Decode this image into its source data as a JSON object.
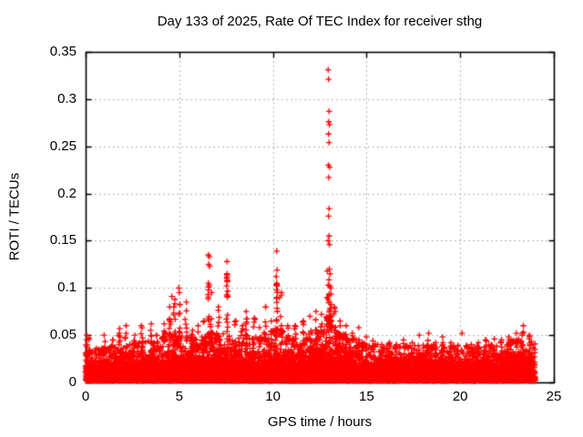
{
  "window": {
    "background": "#ffffff"
  },
  "chart_data": {
    "type": "scatter",
    "title": "Day 133 of 2025, Rate Of TEC Index for receiver sthg",
    "xlabel": "GPS time / hours",
    "ylabel": "ROTI / TECUs",
    "xlim": [
      0,
      25
    ],
    "ylim": [
      0,
      0.35
    ],
    "xticks": [
      0,
      5,
      10,
      15,
      20,
      25
    ],
    "yticks": [
      0,
      0.05,
      0.1,
      0.15,
      0.2,
      0.25,
      0.3,
      0.35
    ],
    "grid": {
      "on": true,
      "color": "#b0b0b0",
      "dash": [
        2,
        3
      ]
    },
    "axis_color": "#000000",
    "legend": "none",
    "marker": {
      "shape": "plus",
      "color": "#ff0000",
      "size": 6.5
    },
    "x_data_range": [
      0,
      24
    ],
    "seed": 20250513,
    "baseline": {
      "description": "dense noise cloud of ROTI values present for all 24 hours",
      "points_per_hour": 500,
      "tail_fraction": 0.06,
      "envelope": [
        [
          0,
          0.022
        ],
        [
          1,
          0.024
        ],
        [
          2,
          0.026
        ],
        [
          3,
          0.028
        ],
        [
          4,
          0.031
        ],
        [
          4.5,
          0.033
        ],
        [
          5,
          0.035
        ],
        [
          5.5,
          0.032
        ],
        [
          6,
          0.03
        ],
        [
          6.5,
          0.034
        ],
        [
          7,
          0.034
        ],
        [
          7.5,
          0.036
        ],
        [
          8,
          0.032
        ],
        [
          8.5,
          0.033
        ],
        [
          9,
          0.031
        ],
        [
          9.5,
          0.034
        ],
        [
          10,
          0.038
        ],
        [
          10.5,
          0.036
        ],
        [
          11,
          0.03
        ],
        [
          11.5,
          0.031
        ],
        [
          12,
          0.034
        ],
        [
          12.5,
          0.038
        ],
        [
          13,
          0.042
        ],
        [
          13.5,
          0.036
        ],
        [
          14,
          0.031
        ],
        [
          15,
          0.027
        ],
        [
          16,
          0.025
        ],
        [
          17,
          0.025
        ],
        [
          18,
          0.026
        ],
        [
          19,
          0.026
        ],
        [
          20,
          0.025
        ],
        [
          21,
          0.025
        ],
        [
          22,
          0.027
        ],
        [
          23,
          0.03
        ],
        [
          24,
          0.028
        ]
      ]
    },
    "spike_columns": [
      [
        0.05,
        6,
        0.03,
        0.05
      ],
      [
        0.2,
        4,
        0.028,
        0.047
      ],
      [
        1.0,
        6,
        0.028,
        0.05
      ],
      [
        1.45,
        5,
        0.028,
        0.045
      ],
      [
        1.8,
        8,
        0.03,
        0.057
      ],
      [
        2.15,
        7,
        0.03,
        0.06
      ],
      [
        2.6,
        6,
        0.028,
        0.05
      ],
      [
        3.0,
        8,
        0.03,
        0.06
      ],
      [
        3.5,
        6,
        0.03,
        0.062
      ],
      [
        3.8,
        5,
        0.028,
        0.05
      ],
      [
        4.2,
        10,
        0.035,
        0.062
      ],
      [
        4.5,
        12,
        0.035,
        0.08
      ],
      [
        4.75,
        10,
        0.038,
        0.088
      ],
      [
        5.0,
        12,
        0.04,
        0.1
      ],
      [
        5.35,
        8,
        0.035,
        0.085
      ],
      [
        5.7,
        5,
        0.03,
        0.055
      ],
      [
        6.0,
        6,
        0.03,
        0.06
      ],
      [
        6.3,
        6,
        0.032,
        0.065
      ],
      [
        6.55,
        9,
        0.04,
        0.098
      ],
      [
        6.7,
        8,
        0.04,
        0.095
      ],
      [
        7.1,
        8,
        0.035,
        0.08
      ],
      [
        7.55,
        14,
        0.04,
        0.115
      ],
      [
        8.0,
        8,
        0.03,
        0.065
      ],
      [
        8.35,
        6,
        0.03,
        0.06
      ],
      [
        8.6,
        8,
        0.033,
        0.075
      ],
      [
        9.0,
        6,
        0.03,
        0.068
      ],
      [
        9.3,
        5,
        0.03,
        0.058
      ],
      [
        9.6,
        8,
        0.033,
        0.08
      ],
      [
        9.9,
        6,
        0.032,
        0.065
      ],
      [
        10.2,
        14,
        0.045,
        0.098
      ],
      [
        10.45,
        10,
        0.038,
        0.095
      ],
      [
        10.8,
        6,
        0.03,
        0.06
      ],
      [
        11.2,
        6,
        0.03,
        0.06
      ],
      [
        11.6,
        7,
        0.03,
        0.065
      ],
      [
        12.0,
        7,
        0.032,
        0.07
      ],
      [
        12.3,
        8,
        0.033,
        0.075
      ],
      [
        12.6,
        7,
        0.033,
        0.072
      ],
      [
        12.9,
        10,
        0.04,
        0.09
      ],
      [
        13.0,
        18,
        0.05,
        0.12
      ],
      [
        13.1,
        12,
        0.042,
        0.1
      ],
      [
        13.3,
        8,
        0.035,
        0.08
      ],
      [
        13.6,
        6,
        0.032,
        0.065
      ],
      [
        13.9,
        6,
        0.03,
        0.06
      ],
      [
        14.25,
        6,
        0.028,
        0.052
      ],
      [
        14.6,
        8,
        0.028,
        0.058
      ],
      [
        15.0,
        5,
        0.026,
        0.048
      ],
      [
        15.35,
        5,
        0.024,
        0.044
      ],
      [
        15.8,
        4,
        0.024,
        0.04
      ],
      [
        16.2,
        5,
        0.024,
        0.042
      ],
      [
        16.6,
        4,
        0.024,
        0.04
      ],
      [
        17.0,
        5,
        0.024,
        0.045
      ],
      [
        17.45,
        4,
        0.024,
        0.042
      ],
      [
        17.8,
        6,
        0.026,
        0.05
      ],
      [
        18.3,
        6,
        0.026,
        0.052
      ],
      [
        18.7,
        4,
        0.024,
        0.042
      ],
      [
        19.05,
        5,
        0.025,
        0.048
      ],
      [
        19.5,
        4,
        0.024,
        0.042
      ],
      [
        20.6,
        4,
        0.024,
        0.04
      ],
      [
        21.0,
        4,
        0.024,
        0.042
      ],
      [
        21.35,
        5,
        0.024,
        0.045
      ],
      [
        21.8,
        5,
        0.025,
        0.046
      ],
      [
        22.2,
        5,
        0.025,
        0.045
      ],
      [
        22.6,
        5,
        0.026,
        0.048
      ],
      [
        23.0,
        6,
        0.028,
        0.052
      ],
      [
        23.35,
        10,
        0.03,
        0.06
      ],
      [
        23.7,
        6,
        0.028,
        0.05
      ]
    ],
    "outliers": [
      [
        12.95,
        0.331
      ],
      [
        12.97,
        0.321
      ],
      [
        13.0,
        0.287
      ],
      [
        12.98,
        0.276
      ],
      [
        13.02,
        0.273
      ],
      [
        12.97,
        0.263
      ],
      [
        13.0,
        0.254
      ],
      [
        12.96,
        0.23
      ],
      [
        13.03,
        0.228
      ],
      [
        12.98,
        0.217
      ],
      [
        13.0,
        0.184
      ],
      [
        12.97,
        0.176
      ],
      [
        13.0,
        0.155
      ],
      [
        12.95,
        0.15
      ],
      [
        13.02,
        0.146
      ],
      [
        12.9,
        0.118
      ],
      [
        13.05,
        0.115
      ],
      [
        12.95,
        0.103
      ],
      [
        13.08,
        0.1
      ],
      [
        6.55,
        0.135
      ],
      [
        6.6,
        0.133
      ],
      [
        6.57,
        0.125
      ],
      [
        6.62,
        0.123
      ],
      [
        6.55,
        0.105
      ],
      [
        6.6,
        0.103
      ],
      [
        6.57,
        0.101
      ],
      [
        7.55,
        0.128
      ],
      [
        7.55,
        0.114
      ],
      [
        7.57,
        0.108
      ],
      [
        7.53,
        0.102
      ],
      [
        10.2,
        0.139
      ],
      [
        10.22,
        0.119
      ],
      [
        10.18,
        0.112
      ],
      [
        10.2,
        0.105
      ],
      [
        10.21,
        0.104
      ],
      [
        10.19,
        0.103
      ],
      [
        10.23,
        0.102
      ],
      [
        10.35,
        0.09
      ],
      [
        5.0,
        0.095
      ],
      [
        4.6,
        0.091
      ],
      [
        20.1,
        0.052
      ]
    ]
  }
}
